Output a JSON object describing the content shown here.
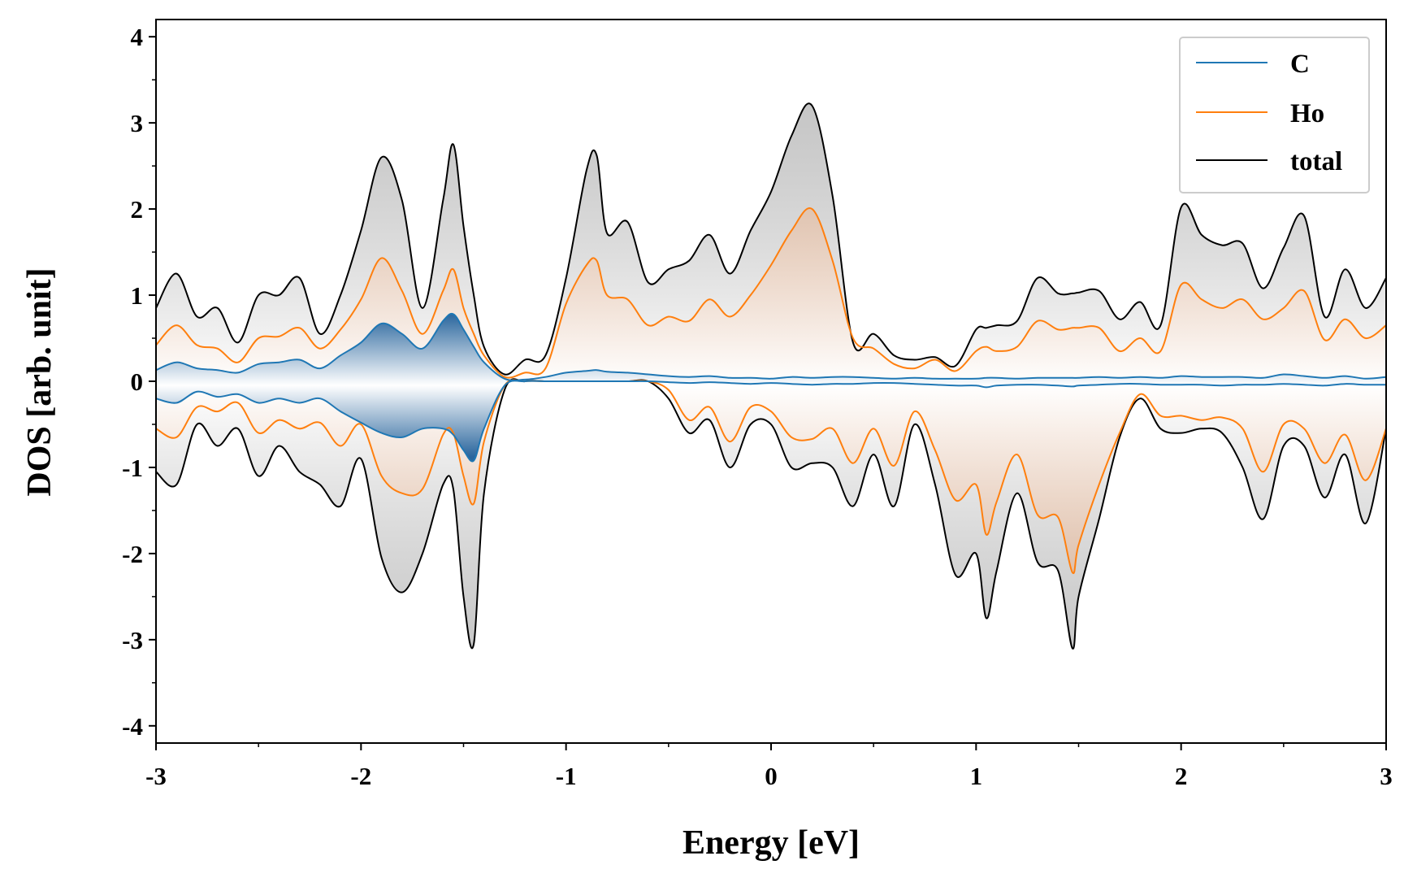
{
  "chart_data": {
    "type": "line",
    "xlabel": "Energy [eV]",
    "ylabel": "DOS [arb. unit]",
    "xlim": [
      -3,
      3
    ],
    "ylim": [
      -4.2,
      4.2
    ],
    "xticks": [
      -3,
      -2,
      -1,
      0,
      1,
      2,
      3
    ],
    "yticks": [
      -4,
      -3,
      -2,
      -1,
      0,
      1,
      2,
      3,
      4
    ],
    "legend_position": "top-right",
    "grid": false,
    "fill_under_curves": true,
    "colors": {
      "C": "#1f77b4",
      "Ho": "#ff7f0e",
      "total": "#000000"
    },
    "x": [
      -3.0,
      -2.9,
      -2.8,
      -2.7,
      -2.6,
      -2.5,
      -2.4,
      -2.3,
      -2.2,
      -2.1,
      -2.0,
      -1.9,
      -1.8,
      -1.7,
      -1.6,
      -1.55,
      -1.5,
      -1.45,
      -1.4,
      -1.3,
      -1.2,
      -1.1,
      -1.0,
      -0.9,
      -0.85,
      -0.8,
      -0.7,
      -0.6,
      -0.5,
      -0.4,
      -0.3,
      -0.2,
      -0.1,
      0.0,
      0.1,
      0.2,
      0.3,
      0.4,
      0.5,
      0.6,
      0.7,
      0.8,
      0.9,
      1.0,
      1.05,
      1.1,
      1.2,
      1.3,
      1.4,
      1.47,
      1.5,
      1.6,
      1.7,
      1.8,
      1.9,
      2.0,
      2.1,
      2.2,
      2.3,
      2.4,
      2.5,
      2.6,
      2.7,
      2.8,
      2.9,
      3.0
    ],
    "series": [
      {
        "name": "C",
        "spin_up": [
          0.13,
          0.22,
          0.15,
          0.13,
          0.1,
          0.2,
          0.22,
          0.25,
          0.15,
          0.3,
          0.45,
          0.67,
          0.55,
          0.38,
          0.7,
          0.78,
          0.6,
          0.4,
          0.22,
          0.03,
          0.02,
          0.05,
          0.1,
          0.12,
          0.13,
          0.11,
          0.1,
          0.08,
          0.06,
          0.05,
          0.06,
          0.04,
          0.04,
          0.03,
          0.05,
          0.04,
          0.05,
          0.05,
          0.04,
          0.03,
          0.04,
          0.03,
          0.03,
          0.03,
          0.04,
          0.04,
          0.03,
          0.04,
          0.04,
          0.04,
          0.04,
          0.05,
          0.04,
          0.05,
          0.04,
          0.06,
          0.05,
          0.05,
          0.05,
          0.04,
          0.08,
          0.06,
          0.04,
          0.06,
          0.03,
          0.05
        ],
        "spin_down": [
          -0.2,
          -0.25,
          -0.12,
          -0.18,
          -0.15,
          -0.25,
          -0.2,
          -0.25,
          -0.2,
          -0.35,
          -0.48,
          -0.6,
          -0.65,
          -0.55,
          -0.55,
          -0.62,
          -0.8,
          -0.92,
          -0.55,
          -0.05,
          0.0,
          0.0,
          0.0,
          0.0,
          0.0,
          0.0,
          0.0,
          0.0,
          -0.01,
          -0.02,
          -0.01,
          -0.02,
          -0.03,
          -0.02,
          -0.03,
          -0.04,
          -0.03,
          -0.03,
          -0.02,
          -0.02,
          -0.03,
          -0.04,
          -0.05,
          -0.05,
          -0.07,
          -0.05,
          -0.04,
          -0.04,
          -0.05,
          -0.06,
          -0.05,
          -0.04,
          -0.03,
          -0.03,
          -0.04,
          -0.04,
          -0.04,
          -0.05,
          -0.04,
          -0.04,
          -0.03,
          -0.04,
          -0.05,
          -0.03,
          -0.04,
          -0.04
        ]
      },
      {
        "name": "Ho",
        "spin_up": [
          0.42,
          0.65,
          0.42,
          0.38,
          0.22,
          0.5,
          0.52,
          0.62,
          0.38,
          0.6,
          0.95,
          1.43,
          1.05,
          0.55,
          1.05,
          1.3,
          0.85,
          0.55,
          0.3,
          0.05,
          0.1,
          0.15,
          0.9,
          1.35,
          1.4,
          1.0,
          0.95,
          0.65,
          0.75,
          0.7,
          0.95,
          0.75,
          1.0,
          1.35,
          1.75,
          2.0,
          1.4,
          0.5,
          0.38,
          0.2,
          0.15,
          0.25,
          0.12,
          0.35,
          0.4,
          0.35,
          0.4,
          0.7,
          0.6,
          0.62,
          0.62,
          0.62,
          0.35,
          0.5,
          0.35,
          1.12,
          0.95,
          0.85,
          0.95,
          0.72,
          0.85,
          1.05,
          0.48,
          0.72,
          0.5,
          0.65
        ],
        "spin_down": [
          -0.55,
          -0.65,
          -0.3,
          -0.35,
          -0.25,
          -0.6,
          -0.45,
          -0.55,
          -0.48,
          -0.75,
          -0.5,
          -1.1,
          -1.3,
          -1.25,
          -0.62,
          -0.6,
          -1.1,
          -1.42,
          -0.7,
          -0.05,
          0.0,
          0.0,
          0.0,
          0.0,
          0.0,
          0.0,
          0.0,
          0.0,
          -0.1,
          -0.45,
          -0.3,
          -0.7,
          -0.3,
          -0.35,
          -0.65,
          -0.67,
          -0.55,
          -0.95,
          -0.55,
          -0.98,
          -0.35,
          -0.8,
          -1.38,
          -1.2,
          -1.78,
          -1.4,
          -0.85,
          -1.55,
          -1.58,
          -2.22,
          -1.9,
          -1.2,
          -0.6,
          -0.15,
          -0.4,
          -0.4,
          -0.45,
          -0.42,
          -0.55,
          -1.05,
          -0.5,
          -0.55,
          -0.95,
          -0.62,
          -1.15,
          -0.55
        ]
      },
      {
        "name": "total",
        "spin_up": [
          0.85,
          1.25,
          0.75,
          0.85,
          0.45,
          1.0,
          1.0,
          1.2,
          0.55,
          1.0,
          1.75,
          2.6,
          2.1,
          0.85,
          2.1,
          2.75,
          1.8,
          1.0,
          0.4,
          0.08,
          0.25,
          0.3,
          1.2,
          2.45,
          2.62,
          1.72,
          1.85,
          1.15,
          1.3,
          1.4,
          1.7,
          1.25,
          1.75,
          2.2,
          2.85,
          3.2,
          2.15,
          0.45,
          0.55,
          0.3,
          0.25,
          0.28,
          0.18,
          0.6,
          0.62,
          0.65,
          0.7,
          1.2,
          1.02,
          1.02,
          1.03,
          1.05,
          0.72,
          0.92,
          0.65,
          2.02,
          1.7,
          1.58,
          1.6,
          1.08,
          1.55,
          1.92,
          0.75,
          1.3,
          0.85,
          1.2
        ],
        "spin_down": [
          -1.05,
          -1.2,
          -0.5,
          -0.75,
          -0.55,
          -1.1,
          -0.75,
          -1.05,
          -1.2,
          -1.45,
          -0.9,
          -2.05,
          -2.45,
          -2.0,
          -1.2,
          -1.25,
          -2.5,
          -3.05,
          -1.3,
          -0.1,
          0.0,
          0.0,
          0.0,
          0.0,
          0.0,
          0.0,
          0.0,
          0.0,
          -0.2,
          -0.6,
          -0.45,
          -1.0,
          -0.5,
          -0.5,
          -1.0,
          -0.95,
          -1.0,
          -1.45,
          -0.85,
          -1.45,
          -0.5,
          -1.2,
          -2.25,
          -2.0,
          -2.75,
          -2.2,
          -1.3,
          -2.1,
          -2.2,
          -3.1,
          -2.5,
          -1.6,
          -0.65,
          -0.2,
          -0.55,
          -0.6,
          -0.55,
          -0.6,
          -1.0,
          -1.6,
          -0.75,
          -0.75,
          -1.35,
          -0.85,
          -1.65,
          -0.55
        ]
      }
    ]
  }
}
